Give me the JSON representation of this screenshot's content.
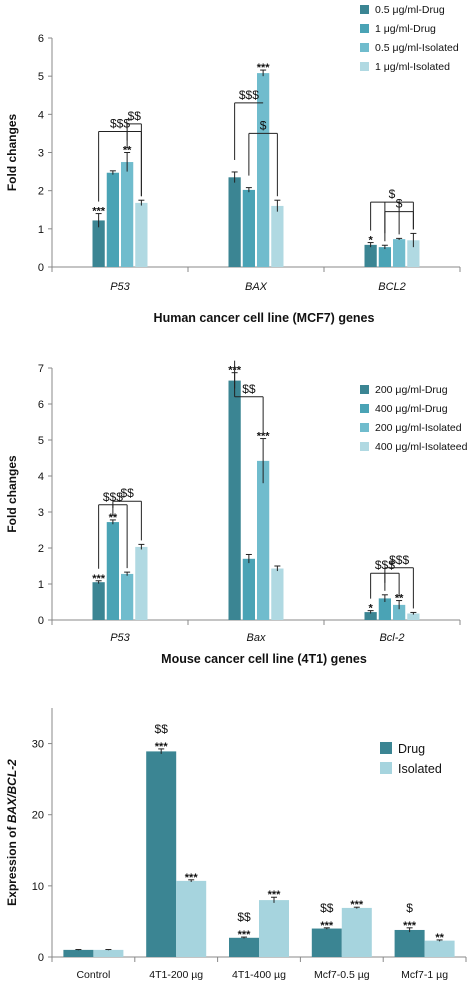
{
  "chart_data": [
    {
      "type": "bar",
      "ylabel": "Fold changes",
      "xlabel": "Human cancer cell line (MCF7) genes",
      "ylim": [
        0,
        6
      ],
      "yticks": [
        0,
        1,
        2,
        3,
        4,
        5,
        6
      ],
      "categories": [
        "P53",
        "BAX",
        "BCL2"
      ],
      "category_style": "italic",
      "series": [
        {
          "name": "0.5 μg/ml-Drug",
          "color": "#3b8593",
          "values": [
            1.22,
            2.35,
            0.58
          ],
          "errors": [
            0.18,
            0.14,
            0.06
          ]
        },
        {
          "name": "1 μg/ml-Drug",
          "color": "#4aa3b5",
          "values": [
            2.47,
            2.02,
            0.52
          ],
          "errors": [
            0.05,
            0.06,
            0.05
          ]
        },
        {
          "name": "0.5 μg/ml-Isolated",
          "color": "#70bccd",
          "values": [
            2.75,
            5.08,
            0.73
          ],
          "errors": [
            0.25,
            0.08,
            0.02
          ]
        },
        {
          "name": "1 μg/ml-Isolated",
          "color": "#b0d9e2",
          "values": [
            1.68,
            1.6,
            0.7
          ],
          "errors": [
            0.07,
            0.15,
            0.18
          ]
        }
      ],
      "annotations": [
        {
          "text": "***",
          "category": 0,
          "series": 0
        },
        {
          "text": "**",
          "category": 0,
          "series": 2
        },
        {
          "text": "***",
          "category": 1,
          "series": 2
        },
        {
          "text": "*",
          "category": 2,
          "series": 0
        }
      ],
      "brackets": [
        {
          "text": "$$$",
          "category": 0,
          "from_series": 0,
          "to_series": [
            2,
            3
          ],
          "level": 3.55
        },
        {
          "text": "$$",
          "category": 0,
          "from_series": 2,
          "to_series": [
            3
          ],
          "level": 3.75
        },
        {
          "text": "$$$",
          "category": 1,
          "from_series": 0,
          "to_series": [
            2
          ],
          "level": 4.3
        },
        {
          "text": "$",
          "category": 1,
          "from_series": 1,
          "to_series": [
            3
          ],
          "level": 3.5
        },
        {
          "text": "$",
          "category": 2,
          "from_series": 0,
          "to_series": [
            1,
            2,
            3
          ],
          "level": 1.7
        },
        {
          "text": "$",
          "category": 2,
          "from_series": 1,
          "to_series": [
            3
          ],
          "level": 1.45
        }
      ],
      "legend_position": "top-right"
    },
    {
      "type": "bar",
      "ylabel": "Fold changes",
      "xlabel": "Mouse cancer cell line (4T1) genes",
      "ylim": [
        0,
        7
      ],
      "yticks": [
        0,
        1,
        2,
        3,
        4,
        5,
        6,
        7
      ],
      "categories": [
        "P53",
        "Bax",
        "Bcl-2"
      ],
      "category_style": "italic",
      "series": [
        {
          "name": "200 μg/ml-Drug",
          "color": "#3b8593",
          "values": [
            1.05,
            6.65,
            0.22
          ],
          "errors": [
            0.04,
            0.22,
            0.04
          ]
        },
        {
          "name": "400 μg/ml-Drug",
          "color": "#4aa3b5",
          "values": [
            2.72,
            1.7,
            0.6
          ],
          "errors": [
            0.06,
            0.12,
            0.1
          ]
        },
        {
          "name": "200 μg/ml-Isolated",
          "color": "#70bccd",
          "values": [
            1.28,
            4.42,
            0.42
          ],
          "errors": [
            0.05,
            0.62,
            0.12
          ]
        },
        {
          "name": "400 μg/ml-Isolateed",
          "color": "#b0d9e2",
          "values": [
            2.03,
            1.43,
            0.18
          ],
          "errors": [
            0.07,
            0.07,
            0.03
          ]
        }
      ],
      "annotations": [
        {
          "text": "***",
          "category": 0,
          "series": 0
        },
        {
          "text": "**",
          "category": 0,
          "series": 1
        },
        {
          "text": "***",
          "category": 1,
          "series": 0
        },
        {
          "text": "***",
          "category": 1,
          "series": 2
        },
        {
          "text": "*",
          "category": 2,
          "series": 0
        },
        {
          "text": "**",
          "category": 2,
          "series": 2
        }
      ],
      "brackets": [
        {
          "text": "$$$",
          "category": 0,
          "from_series": 0,
          "to_series": [
            1,
            2
          ],
          "level": 3.2
        },
        {
          "text": "$$",
          "category": 0,
          "from_series": 1,
          "to_series": [
            3
          ],
          "level": 3.3
        },
        {
          "text": "$$",
          "category": 1,
          "from_series": 0,
          "to_series": [
            2
          ],
          "level": 6.2
        },
        {
          "text": "$$$",
          "category": 2,
          "from_series": 0,
          "to_series": [
            1,
            2
          ],
          "level": 1.3
        },
        {
          "text": "$$$",
          "category": 2,
          "from_series": 1,
          "to_series": [
            3
          ],
          "level": 1.45
        }
      ],
      "legend_position": "top-right"
    },
    {
      "type": "bar",
      "ylabel_prefix": "Expression of ",
      "ylabel_italic": "BAX/BCL-2",
      "xlabel": "",
      "ylim": [
        0,
        35
      ],
      "yticks": [
        0,
        10,
        20,
        30
      ],
      "categories": [
        "Control",
        "4T1-200 µg",
        "4T1-400 µg",
        "Mcf7-0.5 µg",
        "Mcf7-1 µg"
      ],
      "category_style": "normal",
      "series": [
        {
          "name": "Drug",
          "color": "#3b8593",
          "values": [
            1.0,
            28.9,
            2.7,
            4.0,
            3.8
          ],
          "errors": [
            0.05,
            0.35,
            0.1,
            0.1,
            0.3
          ]
        },
        {
          "name": "Isolated",
          "color": "#a6d4de",
          "values": [
            1.0,
            10.7,
            8.0,
            6.9,
            2.3
          ],
          "errors": [
            0.05,
            0.15,
            0.4,
            0.1,
            0.1
          ]
        }
      ],
      "annotations": [
        {
          "text": "***",
          "category": 1,
          "series": 0
        },
        {
          "text": "$$",
          "category": 1,
          "series": 0,
          "stack": 2
        },
        {
          "text": "***",
          "category": 1,
          "series": 1
        },
        {
          "text": "***",
          "category": 2,
          "series": 0
        },
        {
          "text": "$$",
          "category": 2,
          "series": 0,
          "stack": 2
        },
        {
          "text": "***",
          "category": 2,
          "series": 1
        },
        {
          "text": "***",
          "category": 3,
          "series": 0
        },
        {
          "text": "$$",
          "category": 3,
          "series": 0,
          "stack": 2
        },
        {
          "text": "***",
          "category": 3,
          "series": 1
        },
        {
          "text": "***",
          "category": 4,
          "series": 0
        },
        {
          "text": "$",
          "category": 4,
          "series": 0,
          "stack": 2
        },
        {
          "text": "**",
          "category": 4,
          "series": 1
        }
      ],
      "brackets": [],
      "legend_position": "top-right"
    }
  ]
}
